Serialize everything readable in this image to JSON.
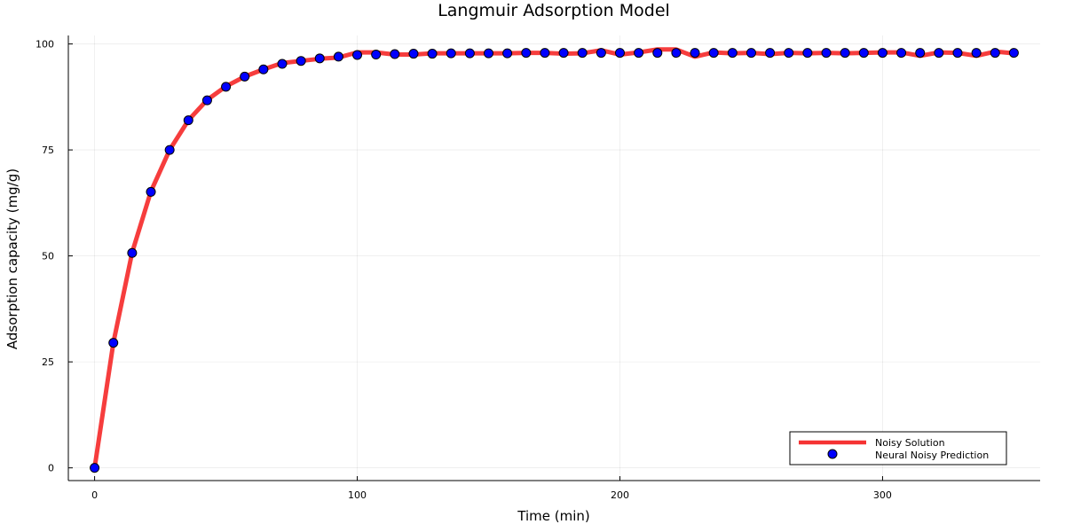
{
  "chart_data": {
    "type": "line",
    "title": "Langmuir Adsorption Model",
    "xlabel": "Time (min)",
    "ylabel": "Adsorption capacity (mg/g)",
    "xlim": [
      -10,
      360
    ],
    "ylim": [
      -3,
      102
    ],
    "xticks": [
      0,
      100,
      200,
      300
    ],
    "yticks": [
      0,
      25,
      50,
      75,
      100
    ],
    "grid": true,
    "legend_position": "bottom-right",
    "x": [
      0,
      7.14,
      14.29,
      21.43,
      28.57,
      35.71,
      42.86,
      50,
      57.14,
      64.29,
      71.43,
      78.57,
      85.71,
      92.86,
      100,
      107.14,
      114.29,
      121.43,
      128.57,
      135.71,
      142.86,
      150,
      157.14,
      164.29,
      171.43,
      178.57,
      185.71,
      192.86,
      200,
      207.14,
      214.29,
      221.43,
      228.57,
      235.71,
      242.86,
      250,
      257.14,
      264.29,
      271.43,
      278.57,
      285.71,
      292.86,
      300,
      307.14,
      314.29,
      321.43,
      328.57,
      335.71,
      342.86,
      350
    ],
    "series": [
      {
        "name": "Noisy Solution",
        "style": "line",
        "color": "#f53333",
        "values": [
          0,
          29.5,
          50.8,
          65.2,
          75.0,
          82.0,
          86.8,
          90.0,
          92.3,
          94.0,
          95.5,
          96.0,
          96.5,
          96.8,
          98.0,
          98.0,
          97.5,
          97.5,
          97.8,
          97.8,
          97.8,
          97.8,
          97.8,
          97.9,
          97.9,
          97.7,
          97.8,
          98.5,
          97.5,
          98.0,
          98.7,
          98.7,
          97.0,
          98.0,
          97.8,
          97.9,
          97.6,
          97.9,
          97.8,
          97.9,
          97.8,
          97.9,
          98.0,
          98.0,
          97.2,
          98.0,
          97.9,
          97.2,
          98.2,
          97.8
        ]
      },
      {
        "name": "Neural Noisy Prediction",
        "style": "scatter",
        "color": "#0000ff",
        "values": [
          0,
          29.5,
          50.7,
          65.1,
          75.0,
          82.0,
          86.7,
          89.9,
          92.3,
          94.0,
          95.3,
          96.0,
          96.6,
          97.0,
          97.4,
          97.5,
          97.6,
          97.7,
          97.7,
          97.8,
          97.8,
          97.8,
          97.8,
          97.9,
          97.9,
          97.9,
          97.9,
          97.9,
          97.9,
          97.9,
          97.9,
          97.9,
          97.9,
          97.9,
          97.9,
          97.9,
          97.9,
          97.9,
          97.9,
          97.9,
          97.9,
          97.9,
          97.9,
          97.9,
          97.9,
          97.9,
          97.9,
          97.9,
          97.9,
          97.9
        ]
      }
    ]
  }
}
